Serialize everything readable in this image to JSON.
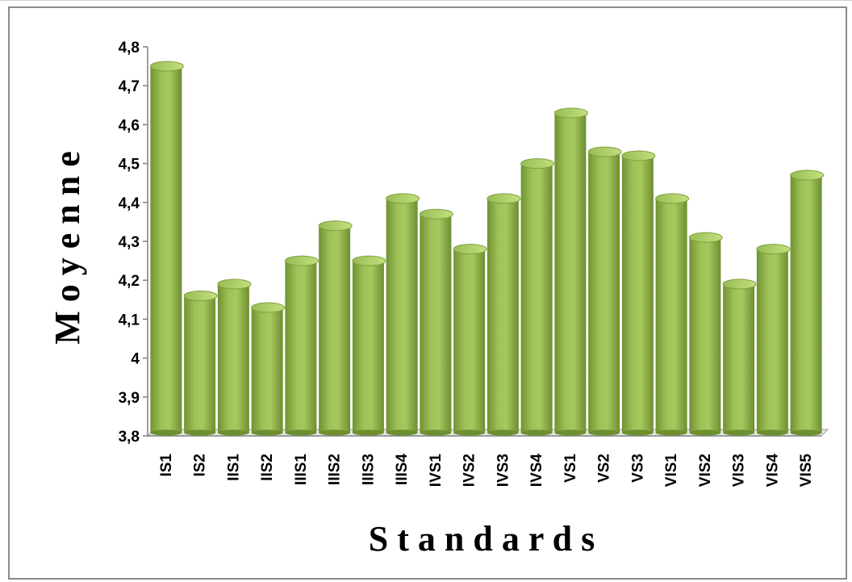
{
  "chart_data": {
    "type": "bar",
    "categories": [
      "IS1",
      "IS2",
      "IIS1",
      "IIS2",
      "IIIS1",
      "IIIS2",
      "IIIS3",
      "IIIS4",
      "IVS1",
      "IVS2",
      "IVS3",
      "IVS4",
      "VS1",
      "VS2",
      "VS3",
      "VIS1",
      "VIS2",
      "VIS3",
      "VIS4",
      "VIS5"
    ],
    "values": [
      4.75,
      4.16,
      4.19,
      4.13,
      4.25,
      4.34,
      4.25,
      4.41,
      4.37,
      4.28,
      4.41,
      4.5,
      4.63,
      4.53,
      4.52,
      4.41,
      4.31,
      4.19,
      4.28,
      4.47
    ],
    "ylim": [
      3.8,
      4.8
    ],
    "yticks": [
      "3,8",
      "3,9",
      "4",
      "4,1",
      "4,2",
      "4,3",
      "4,4",
      "4,5",
      "4,6",
      "4,7",
      "4,8"
    ],
    "ytick_values": [
      3.8,
      3.9,
      4.0,
      4.1,
      4.2,
      4.3,
      4.4,
      4.5,
      4.6,
      4.7,
      4.8
    ],
    "xlabel": "S t a n d a r d s",
    "ylabel": "M o y e n n e",
    "bar_color": "#8fb24a",
    "bar_top_color": "#a9cc64",
    "bar_shadow_color": "#6a8a32",
    "grid": false,
    "legend": "none"
  }
}
